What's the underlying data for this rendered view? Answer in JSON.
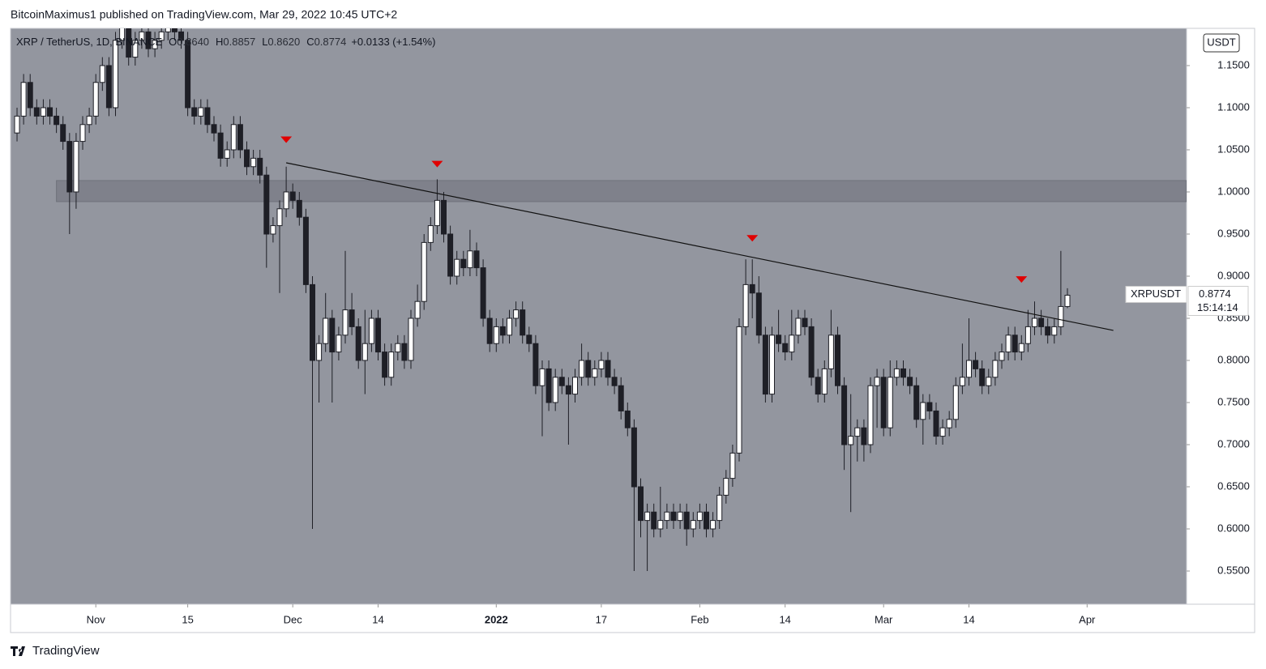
{
  "header": {
    "byline": "BitcoinMaximus1 published on TradingView.com, Mar 29, 2022 10:45 UTC+2"
  },
  "footer": {
    "brand": "TradingView"
  },
  "chart_data": {
    "type": "candlestick",
    "symbol": "XRP / TetherUS, 1D, BINANCE",
    "ohlc_legend": [
      {
        "key": "O",
        "value": "0.8640"
      },
      {
        "key": "H",
        "value": "0.8857"
      },
      {
        "key": "L",
        "value": "0.8620"
      },
      {
        "key": "C",
        "value": "0.8774"
      }
    ],
    "change": "+0.0133 (+1.54%)",
    "currency": "USDT",
    "price_tag": {
      "name": "XRPUSDT",
      "price": "0.8774",
      "countdown": "15:14:14"
    },
    "up_color": "#ffffff",
    "down_color": "#1e1f26",
    "background": "#93969f",
    "xlim": [
      -0.99,
      178.15
    ],
    "ylim": [
      0.5106,
      1.1942
    ],
    "xticks": [
      {
        "value": 12,
        "label": "Nov"
      },
      {
        "value": 26,
        "label": "15"
      },
      {
        "value": 42,
        "label": "Dec"
      },
      {
        "value": 55,
        "label": "14"
      },
      {
        "value": 73,
        "label": "2022"
      },
      {
        "value": 89,
        "label": "17"
      },
      {
        "value": 104,
        "label": "Feb"
      },
      {
        "value": 117,
        "label": "14"
      },
      {
        "value": 132,
        "label": "Mar"
      },
      {
        "value": 145,
        "label": "14"
      },
      {
        "value": 163,
        "label": "Apr"
      }
    ],
    "yticks": [
      {
        "value": 0.55,
        "label": "0.5500"
      },
      {
        "value": 0.6,
        "label": "0.6000"
      },
      {
        "value": 0.65,
        "label": "0.6500"
      },
      {
        "value": 0.7,
        "label": "0.7000"
      },
      {
        "value": 0.75,
        "label": "0.7500"
      },
      {
        "value": 0.8,
        "label": "0.8000"
      },
      {
        "value": 0.85,
        "label": "0.8500"
      },
      {
        "value": 0.9,
        "label": "0.9000"
      },
      {
        "value": 0.95,
        "label": "0.9500"
      },
      {
        "value": 1.0,
        "label": "1.0000"
      },
      {
        "value": 1.05,
        "label": "1.0500"
      },
      {
        "value": 1.1,
        "label": "1.1000"
      },
      {
        "value": 1.15,
        "label": "1.1500"
      }
    ],
    "zone": {
      "x_start": 6,
      "y": [
        0.9885,
        1.0135
      ],
      "color": "#7b7e87"
    },
    "trendline": {
      "x": [
        41,
        167
      ],
      "y": [
        1.0346,
        0.8356
      ],
      "color": "#111111"
    },
    "markers": {
      "color": "#e00000",
      "x": [
        41,
        64,
        112,
        153
      ],
      "y": [
        1.062,
        1.033,
        0.945,
        0.896
      ]
    },
    "open": [
      1.07,
      1.09,
      1.13,
      1.1,
      1.09,
      1.1,
      1.09,
      1.08,
      1.06,
      1.0,
      1.06,
      1.08,
      1.09,
      1.13,
      1.15,
      1.1,
      1.18,
      1.2,
      1.16,
      1.18,
      1.19,
      1.17,
      1.18,
      1.19,
      1.2,
      1.19,
      1.18,
      1.1,
      1.09,
      1.1,
      1.08,
      1.07,
      1.04,
      1.05,
      1.08,
      1.05,
      1.03,
      1.04,
      1.02,
      0.95,
      0.96,
      0.98,
      1.0,
      0.99,
      0.97,
      0.89,
      0.8,
      0.82,
      0.85,
      0.81,
      0.83,
      0.86,
      0.84,
      0.8,
      0.82,
      0.85,
      0.81,
      0.78,
      0.81,
      0.82,
      0.8,
      0.85,
      0.87,
      0.94,
      0.96,
      0.99,
      0.95,
      0.9,
      0.92,
      0.91,
      0.93,
      0.91,
      0.85,
      0.82,
      0.84,
      0.83,
      0.85,
      0.86,
      0.83,
      0.82,
      0.77,
      0.79,
      0.75,
      0.78,
      0.77,
      0.76,
      0.78,
      0.8,
      0.78,
      0.79,
      0.8,
      0.78,
      0.77,
      0.74,
      0.72,
      0.65,
      0.61,
      0.62,
      0.6,
      0.61,
      0.62,
      0.61,
      0.62,
      0.6,
      0.61,
      0.62,
      0.6,
      0.61,
      0.64,
      0.66,
      0.69,
      0.84,
      0.89,
      0.88,
      0.83,
      0.76,
      0.83,
      0.82,
      0.81,
      0.83,
      0.85,
      0.84,
      0.78,
      0.76,
      0.79,
      0.83,
      0.77,
      0.7,
      0.71,
      0.72,
      0.7,
      0.77,
      0.78,
      0.72,
      0.78,
      0.79,
      0.78,
      0.77,
      0.73,
      0.75,
      0.74,
      0.71,
      0.72,
      0.73,
      0.77,
      0.78,
      0.8,
      0.79,
      0.77,
      0.78,
      0.8,
      0.81,
      0.83,
      0.81,
      0.82,
      0.84,
      0.85,
      0.84,
      0.83,
      0.84,
      0.864
    ],
    "high": [
      1.1,
      1.14,
      1.14,
      1.11,
      1.11,
      1.11,
      1.1,
      1.09,
      1.07,
      1.07,
      1.09,
      1.1,
      1.14,
      1.16,
      1.16,
      1.19,
      1.21,
      1.21,
      1.19,
      1.2,
      1.2,
      1.19,
      1.2,
      1.21,
      1.21,
      1.2,
      1.19,
      1.11,
      1.11,
      1.11,
      1.09,
      1.08,
      1.06,
      1.09,
      1.09,
      1.06,
      1.05,
      1.05,
      1.03,
      0.97,
      0.99,
      1.03,
      1.01,
      1.0,
      0.98,
      0.9,
      0.83,
      0.88,
      0.86,
      0.84,
      0.93,
      0.88,
      0.85,
      0.86,
      0.86,
      0.86,
      0.82,
      0.82,
      0.83,
      0.83,
      0.86,
      0.89,
      0.95,
      0.97,
      1.015,
      1.0,
      0.96,
      0.93,
      0.93,
      0.955,
      0.94,
      0.92,
      0.86,
      0.85,
      0.85,
      0.86,
      0.87,
      0.87,
      0.84,
      0.83,
      0.8,
      0.8,
      0.79,
      0.79,
      0.78,
      0.79,
      0.82,
      0.81,
      0.8,
      0.81,
      0.81,
      0.79,
      0.78,
      0.75,
      0.73,
      0.66,
      0.63,
      0.63,
      0.65,
      0.63,
      0.63,
      0.63,
      0.63,
      0.62,
      0.63,
      0.63,
      0.62,
      0.65,
      0.67,
      0.7,
      0.85,
      0.92,
      0.92,
      0.9,
      0.84,
      0.84,
      0.86,
      0.83,
      0.86,
      0.86,
      0.86,
      0.85,
      0.79,
      0.8,
      0.86,
      0.84,
      0.78,
      0.76,
      0.73,
      0.73,
      0.78,
      0.79,
      0.79,
      0.8,
      0.8,
      0.8,
      0.79,
      0.78,
      0.76,
      0.76,
      0.75,
      0.73,
      0.74,
      0.78,
      0.82,
      0.85,
      0.81,
      0.8,
      0.79,
      0.81,
      0.82,
      0.84,
      0.84,
      0.83,
      0.86,
      0.87,
      0.86,
      0.85,
      0.85,
      0.93,
      0.8857
    ],
    "low": [
      1.06,
      1.08,
      1.09,
      1.08,
      1.08,
      1.08,
      1.07,
      1.05,
      0.95,
      0.98,
      1.05,
      1.07,
      1.08,
      1.12,
      1.09,
      1.09,
      1.17,
      1.15,
      1.15,
      1.17,
      1.16,
      1.16,
      1.17,
      1.18,
      1.18,
      1.17,
      1.09,
      1.08,
      1.08,
      1.07,
      1.06,
      1.03,
      1.03,
      1.04,
      1.04,
      1.02,
      1.02,
      1.01,
      0.91,
      0.94,
      0.88,
      0.97,
      0.98,
      0.96,
      0.88,
      0.6,
      0.75,
      0.81,
      0.75,
      0.8,
      0.82,
      0.83,
      0.79,
      0.76,
      0.81,
      0.8,
      0.77,
      0.77,
      0.8,
      0.79,
      0.79,
      0.84,
      0.86,
      0.93,
      0.95,
      0.94,
      0.89,
      0.89,
      0.9,
      0.9,
      0.9,
      0.84,
      0.81,
      0.81,
      0.82,
      0.82,
      0.84,
      0.82,
      0.81,
      0.76,
      0.71,
      0.74,
      0.74,
      0.76,
      0.7,
      0.75,
      0.77,
      0.77,
      0.77,
      0.78,
      0.77,
      0.76,
      0.73,
      0.71,
      0.55,
      0.59,
      0.55,
      0.59,
      0.59,
      0.6,
      0.6,
      0.6,
      0.58,
      0.59,
      0.6,
      0.59,
      0.59,
      0.6,
      0.63,
      0.65,
      0.68,
      0.83,
      0.85,
      0.82,
      0.75,
      0.75,
      0.81,
      0.8,
      0.8,
      0.82,
      0.83,
      0.77,
      0.75,
      0.75,
      0.78,
      0.76,
      0.67,
      0.62,
      0.68,
      0.68,
      0.69,
      0.72,
      0.71,
      0.71,
      0.77,
      0.77,
      0.76,
      0.72,
      0.7,
      0.73,
      0.7,
      0.7,
      0.71,
      0.72,
      0.76,
      0.77,
      0.78,
      0.76,
      0.76,
      0.77,
      0.79,
      0.8,
      0.8,
      0.8,
      0.81,
      0.83,
      0.83,
      0.82,
      0.82,
      0.83,
      0.862
    ],
    "close": [
      1.09,
      1.13,
      1.1,
      1.09,
      1.1,
      1.09,
      1.08,
      1.06,
      1.0,
      1.06,
      1.08,
      1.09,
      1.13,
      1.15,
      1.1,
      1.18,
      1.2,
      1.16,
      1.18,
      1.19,
      1.17,
      1.18,
      1.19,
      1.2,
      1.19,
      1.18,
      1.1,
      1.09,
      1.1,
      1.08,
      1.07,
      1.04,
      1.05,
      1.08,
      1.05,
      1.03,
      1.04,
      1.02,
      0.95,
      0.96,
      0.98,
      1.0,
      0.99,
      0.97,
      0.89,
      0.8,
      0.82,
      0.85,
      0.81,
      0.83,
      0.86,
      0.84,
      0.8,
      0.82,
      0.85,
      0.81,
      0.78,
      0.81,
      0.82,
      0.8,
      0.85,
      0.87,
      0.94,
      0.96,
      0.99,
      0.95,
      0.9,
      0.92,
      0.91,
      0.93,
      0.91,
      0.85,
      0.82,
      0.84,
      0.83,
      0.85,
      0.86,
      0.83,
      0.82,
      0.77,
      0.79,
      0.75,
      0.78,
      0.77,
      0.76,
      0.78,
      0.8,
      0.78,
      0.79,
      0.8,
      0.78,
      0.77,
      0.74,
      0.72,
      0.65,
      0.61,
      0.62,
      0.6,
      0.61,
      0.62,
      0.61,
      0.62,
      0.6,
      0.61,
      0.62,
      0.6,
      0.61,
      0.64,
      0.66,
      0.69,
      0.84,
      0.89,
      0.88,
      0.83,
      0.76,
      0.83,
      0.82,
      0.81,
      0.83,
      0.85,
      0.84,
      0.78,
      0.76,
      0.79,
      0.83,
      0.77,
      0.7,
      0.71,
      0.72,
      0.7,
      0.77,
      0.78,
      0.72,
      0.78,
      0.79,
      0.78,
      0.77,
      0.73,
      0.75,
      0.74,
      0.71,
      0.72,
      0.73,
      0.77,
      0.78,
      0.8,
      0.79,
      0.77,
      0.78,
      0.8,
      0.81,
      0.83,
      0.81,
      0.82,
      0.84,
      0.85,
      0.84,
      0.83,
      0.84,
      0.864,
      0.8774
    ]
  }
}
